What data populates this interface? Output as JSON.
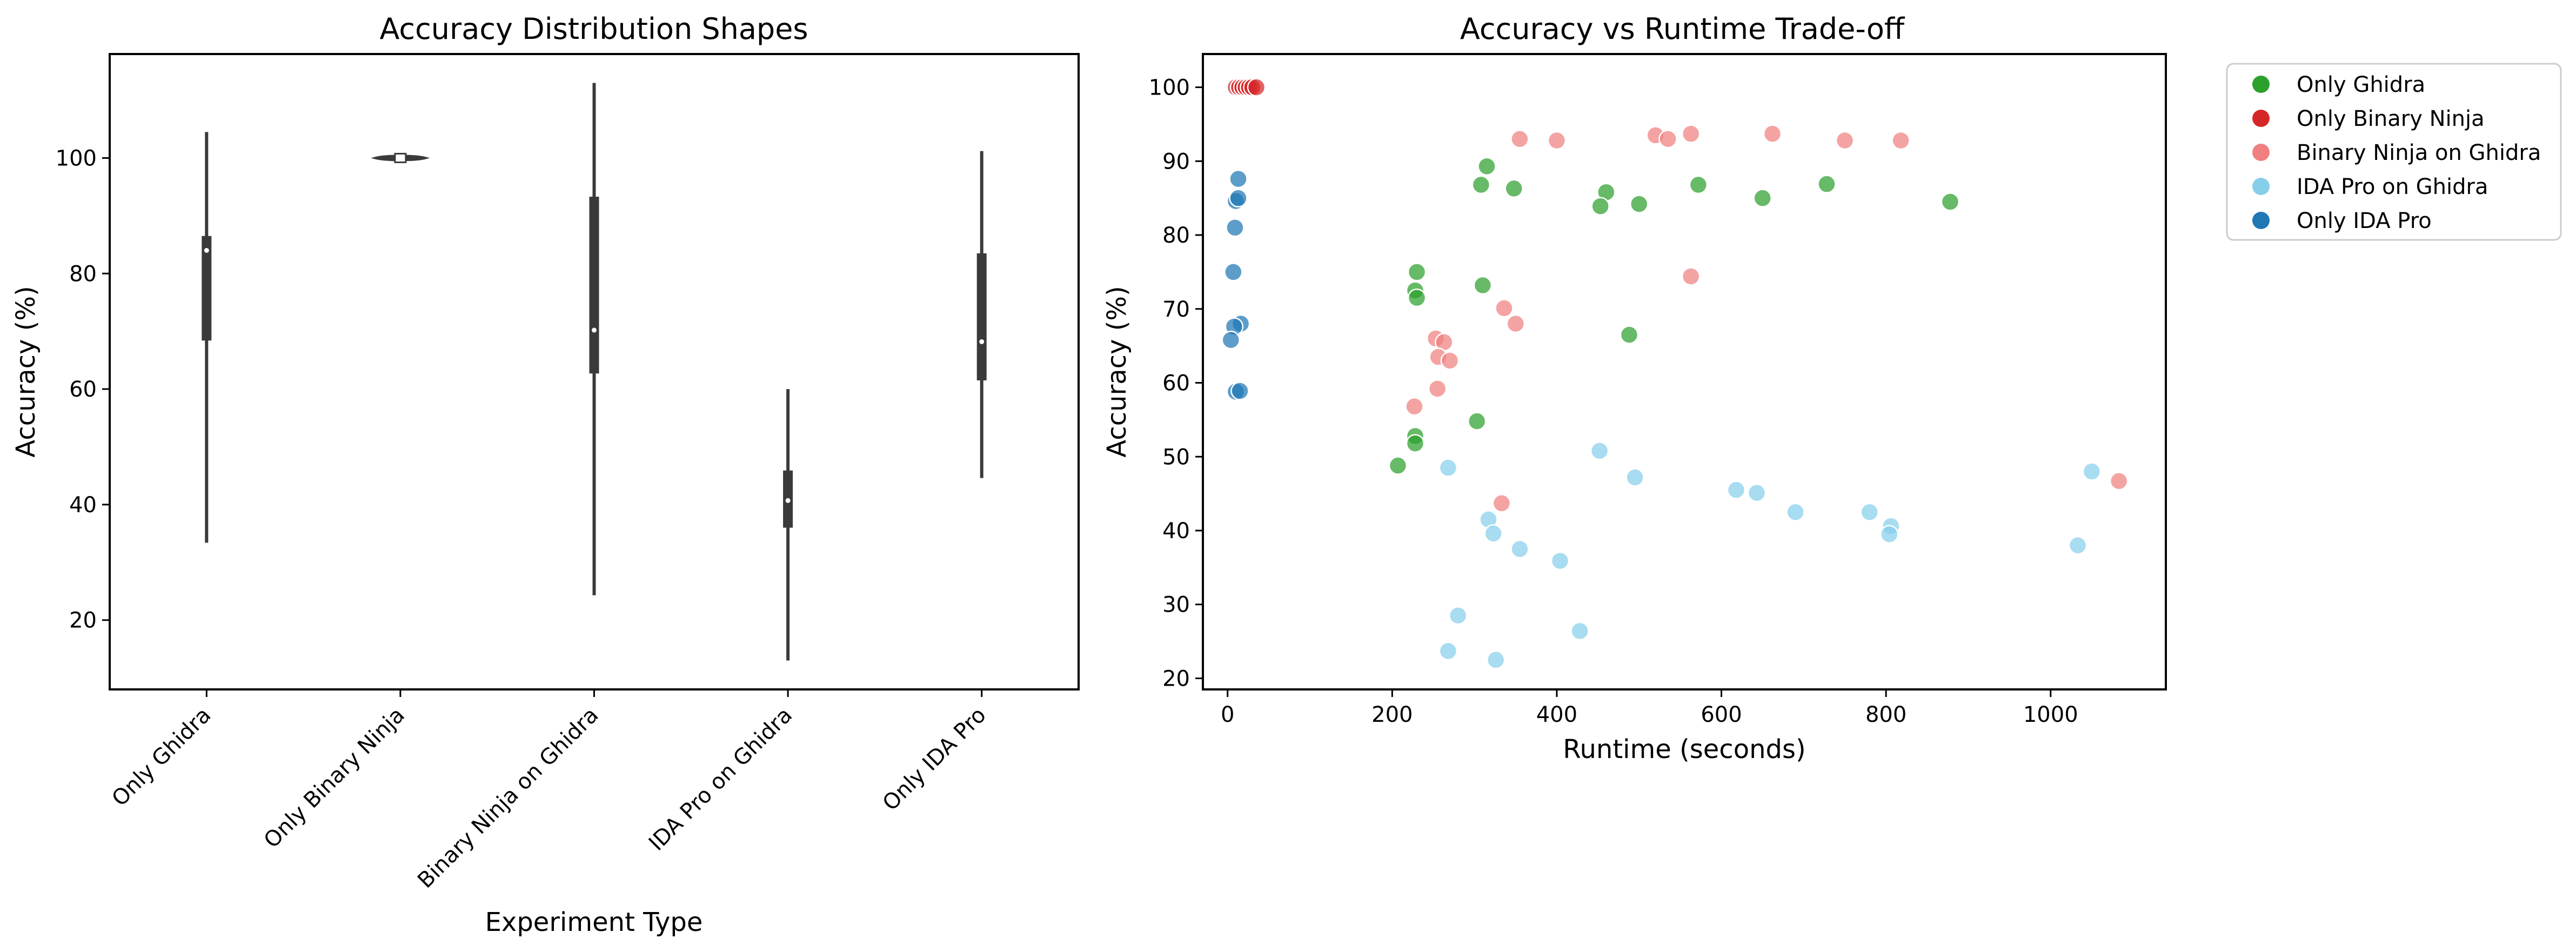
{
  "colors": {
    "only_ghidra": "#2ca02c",
    "only_binary_ninja": "#d62728",
    "binary_ninja_on_ghidra": "#f08080",
    "ida_pro_on_ghidra": "#87ceeb",
    "only_ida_pro": "#1f77b4",
    "violin": "#3a3a3a",
    "axis": "#000000"
  },
  "chart_data": [
    {
      "type": "violin",
      "title": "Accuracy Distribution Shapes",
      "xlabel": "Experiment Type",
      "ylabel": "Accuracy (%)",
      "ylim": [
        8,
        118
      ],
      "y_ticks": [
        20,
        40,
        60,
        80,
        100
      ],
      "grid": false,
      "categories": [
        "Only Ghidra",
        "Only Binary Ninja",
        "Binary Ninja on Ghidra",
        "IDA Pro on Ghidra",
        "Only IDA Pro"
      ],
      "whisker_range": [
        [
          33.4,
          104.5
        ],
        [
          99.7,
          100.3
        ],
        [
          24.3,
          113.0
        ],
        [
          13.0,
          60.0
        ],
        [
          44.6,
          101.2
        ]
      ],
      "quartiles": [
        [
          68.4,
          86.5
        ],
        [
          99.7,
          100.3
        ],
        [
          62.7,
          93.3
        ],
        [
          36.0,
          45.9
        ],
        [
          61.5,
          83.5
        ]
      ],
      "medians": [
        84.0,
        100.0,
        70.2,
        40.7,
        68.2
      ],
      "max_half_width": [
        2,
        47,
        2,
        2,
        2
      ]
    },
    {
      "type": "scatter",
      "title": "Accuracy vs Runtime Trade-off",
      "xlabel": "Runtime (seconds)",
      "ylabel": "Accuracy (%)",
      "xlim": [
        -30,
        1140
      ],
      "ylim": [
        18.5,
        104.5
      ],
      "x_ticks": [
        0,
        200,
        400,
        600,
        800,
        1000
      ],
      "y_ticks": [
        20,
        30,
        40,
        50,
        60,
        70,
        80,
        90,
        100
      ],
      "grid": false,
      "legend_position": "outside-top-right",
      "series": [
        {
          "name": "Only Ghidra",
          "color_key": "only_ghidra",
          "points": [
            [
              315,
              89.3
            ],
            [
              308,
              86.8
            ],
            [
              348,
              86.3
            ],
            [
              460,
              85.8
            ],
            [
              500,
              84.2
            ],
            [
              453,
              83.9
            ],
            [
              572,
              86.8
            ],
            [
              650,
              85.0
            ],
            [
              728,
              86.9
            ],
            [
              878,
              84.5
            ],
            [
              230,
              75.0
            ],
            [
              228,
              72.5
            ],
            [
              230,
              71.5
            ],
            [
              310,
              73.2
            ],
            [
              488,
              66.5
            ],
            [
              228,
              52.8
            ],
            [
              228,
              51.8
            ],
            [
              303,
              54.8
            ],
            [
              207,
              48.8
            ]
          ]
        },
        {
          "name": "Only Binary Ninja",
          "color_key": "only_binary_ninja",
          "points": [
            [
              10,
              100
            ],
            [
              14,
              100
            ],
            [
              18,
              100
            ],
            [
              22,
              100
            ],
            [
              26,
              100
            ],
            [
              30,
              100
            ],
            [
              35,
              100
            ]
          ]
        },
        {
          "name": "Binary Ninja on Ghidra",
          "color_key": "binary_ninja_on_ghidra",
          "points": [
            [
              355,
              93.0
            ],
            [
              400,
              92.8
            ],
            [
              520,
              93.5
            ],
            [
              535,
              93.0
            ],
            [
              563,
              93.7
            ],
            [
              662,
              93.7
            ],
            [
              750,
              92.8
            ],
            [
              818,
              92.8
            ],
            [
              563,
              74.4
            ],
            [
              336,
              70.1
            ],
            [
              350,
              68.0
            ],
            [
              253,
              66.0
            ],
            [
              263,
              65.5
            ],
            [
              256,
              63.5
            ],
            [
              270,
              63.0
            ],
            [
              255,
              59.2
            ],
            [
              227,
              56.8
            ],
            [
              333,
              43.7
            ],
            [
              1083,
              46.7
            ]
          ]
        },
        {
          "name": "IDA Pro on Ghidra",
          "color_key": "ida_pro_on_ghidra",
          "points": [
            [
              452,
              50.8
            ],
            [
              495,
              47.2
            ],
            [
              268,
              48.5
            ],
            [
              618,
              45.5
            ],
            [
              643,
              45.1
            ],
            [
              690,
              42.5
            ],
            [
              780,
              42.5
            ],
            [
              806,
              40.6
            ],
            [
              804,
              39.5
            ],
            [
              1050,
              48.0
            ],
            [
              1033,
              38.0
            ],
            [
              317,
              41.5
            ],
            [
              323,
              39.6
            ],
            [
              355,
              37.5
            ],
            [
              404,
              35.9
            ],
            [
              280,
              28.5
            ],
            [
              428,
              26.4
            ],
            [
              268,
              23.7
            ],
            [
              326,
              22.5
            ]
          ]
        },
        {
          "name": "Only IDA Pro",
          "color_key": "only_ida_pro",
          "points": [
            [
              13,
              87.6
            ],
            [
              10,
              84.6
            ],
            [
              13,
              85.0
            ],
            [
              9,
              81.0
            ],
            [
              7,
              75.0
            ],
            [
              16,
              68.0
            ],
            [
              8,
              67.6
            ],
            [
              4,
              65.8
            ],
            [
              10,
              58.8
            ],
            [
              15,
              58.9
            ]
          ]
        }
      ]
    }
  ]
}
